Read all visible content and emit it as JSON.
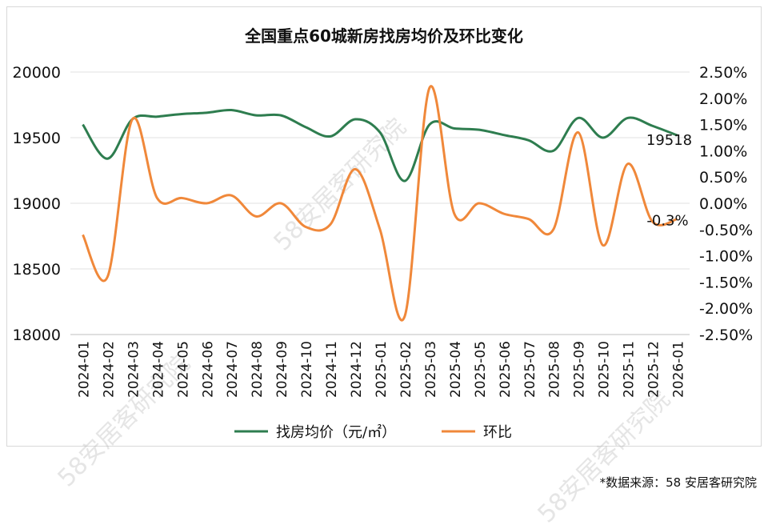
{
  "watermark": "58安居客研究院",
  "source": "*数据来源：58 安居客研究院",
  "chart_data": {
    "type": "line",
    "title": "全国重点60城新房找房均价及环比变化",
    "categories": [
      "2024-01",
      "2024-02",
      "2024-03",
      "2024-04",
      "2024-05",
      "2024-06",
      "2024-07",
      "2024-08",
      "2024-09",
      "2024-10",
      "2024-11",
      "2024-12",
      "2025-01",
      "2025-02",
      "2025-03",
      "2025-04",
      "2025-05",
      "2025-06",
      "2025-07",
      "2025-08",
      "2025-09",
      "2025-10",
      "2025-11",
      "2025-12",
      "2026-01"
    ],
    "left_axis": {
      "min": 18000,
      "max": 20000,
      "ticks": [
        "18000",
        "18500",
        "19000",
        "19500",
        "20000"
      ]
    },
    "right_axis": {
      "min": -2.5,
      "max": 2.5,
      "ticks": [
        "-2.50%",
        "-2.00%",
        "-1.50%",
        "-1.00%",
        "-0.50%",
        "0.00%",
        "0.50%",
        "1.00%",
        "1.50%",
        "2.00%",
        "2.50%"
      ]
    },
    "series": [
      {
        "name": "找房均价（元/㎡）",
        "axis": "left",
        "color": "#2e7d4f",
        "values": [
          19600,
          19340,
          19640,
          19660,
          19680,
          19690,
          19710,
          19670,
          19670,
          19580,
          19510,
          19640,
          19540,
          19170,
          19600,
          19570,
          19560,
          19520,
          19480,
          19400,
          19650,
          19500,
          19650,
          19590,
          19518
        ]
      },
      {
        "name": "环比",
        "axis": "right",
        "color": "#f0883a",
        "values": [
          -0.6,
          -1.4,
          1.6,
          0.1,
          0.1,
          0.0,
          0.15,
          -0.25,
          0.0,
          -0.45,
          -0.4,
          0.65,
          -0.5,
          -2.15,
          2.2,
          -0.2,
          0.0,
          -0.2,
          -0.3,
          -0.5,
          1.35,
          -0.8,
          0.75,
          -0.35,
          -0.3
        ]
      }
    ],
    "end_labels": {
      "price": "19518",
      "mom": "-0.3%"
    },
    "legend": [
      "找房均价（元/㎡）",
      "环比"
    ],
    "legend_position": "bottom"
  }
}
